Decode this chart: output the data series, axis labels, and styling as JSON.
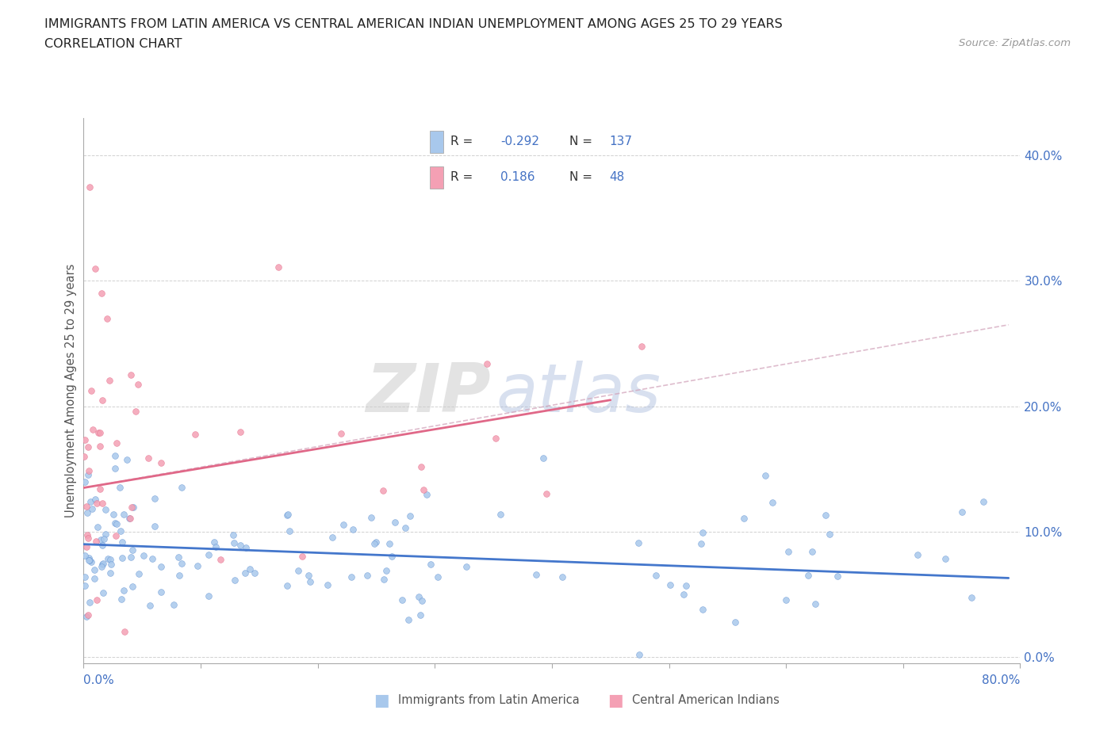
{
  "title_line1": "IMMIGRANTS FROM LATIN AMERICA VS CENTRAL AMERICAN INDIAN UNEMPLOYMENT AMONG AGES 25 TO 29 YEARS",
  "title_line2": "CORRELATION CHART",
  "source_text": "Source: ZipAtlas.com",
  "ylabel": "Unemployment Among Ages 25 to 29 years",
  "ytick_labels": [
    "0.0%",
    "10.0%",
    "20.0%",
    "30.0%",
    "40.0%"
  ],
  "ytick_values": [
    0.0,
    0.1,
    0.2,
    0.3,
    0.4
  ],
  "xlim": [
    0.0,
    0.8
  ],
  "ylim": [
    -0.005,
    0.43
  ],
  "legend1_label": "Immigrants from Latin America",
  "legend2_label": "Central American Indians",
  "color_blue": "#a8c8ec",
  "color_blue_dark": "#5588cc",
  "color_pink": "#f4a0b4",
  "color_pink_dark": "#e06080",
  "color_blue_trend": "#4477cc",
  "color_pink_trend": "#e06888",
  "color_pink_trend_dash": "#c0a0b8",
  "watermark_zip": "ZIP",
  "watermark_atlas": "atlas",
  "background_color": "#ffffff",
  "grid_color": "#cccccc",
  "axis_color": "#aaaaaa",
  "tick_color": "#4472c4",
  "text_color": "#555555",
  "legend_R_color": "#4472c4",
  "legend_text_color": "#333333"
}
